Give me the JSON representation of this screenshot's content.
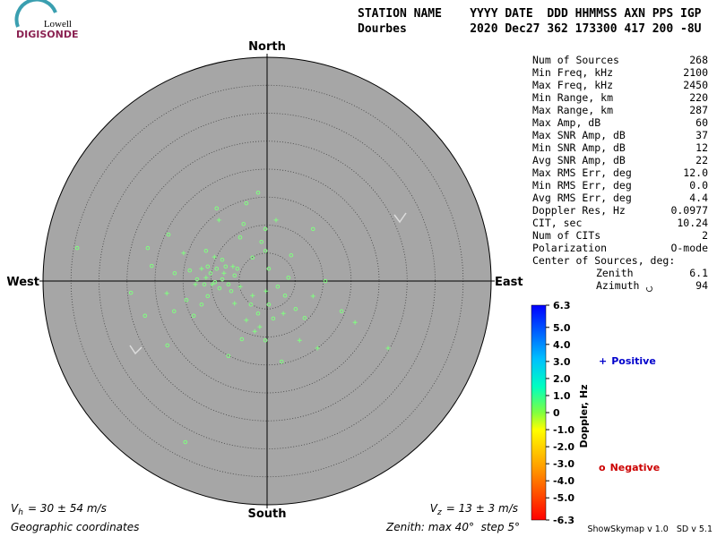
{
  "logo": {
    "top": "Lowell",
    "bottom": "DIGISONDE"
  },
  "header": {
    "line1": "STATION NAME    YYYY DATE  DDD HHMMSS AXN PPS IGP",
    "line2": "Dourbes         2020 Dec27 362 173300 417 200 -8U"
  },
  "stats": [
    [
      "Num of Sources",
      "268"
    ],
    [
      "Min Freq, kHz",
      "2100"
    ],
    [
      "Max Freq, kHz",
      "2450"
    ],
    [
      "Min Range, km",
      "220"
    ],
    [
      "Max Range, km",
      "287"
    ],
    [
      "Max Amp, dB",
      "60"
    ],
    [
      "Max SNR Amp, dB",
      "37"
    ],
    [
      "Min SNR Amp, dB",
      "12"
    ],
    [
      "Avg SNR Amp, dB",
      "22"
    ],
    [
      "Max RMS Err, deg",
      "12.0"
    ],
    [
      "Min RMS Err, deg",
      "0.0"
    ],
    [
      "Avg RMS Err, deg",
      "4.4"
    ],
    [
      "Doppler Res, Hz",
      "0.0977"
    ],
    [
      "CIT, sec",
      "10.24"
    ],
    [
      "Num of CITs",
      "2"
    ],
    [
      "Polarization",
      "O-mode"
    ]
  ],
  "center": {
    "title": "Center of Sources, deg:",
    "rows": [
      [
        "Zenith",
        "6.1"
      ],
      [
        "Azimuth",
        "94"
      ]
    ]
  },
  "colorbar": {
    "label": "Doppler, Hz",
    "clim": [
      -6.3,
      6.3
    ],
    "ticks": [
      6.3,
      {
        "value": 5,
        "label": "5.0"
      },
      {
        "value": 4,
        "label": "4.0"
      },
      {
        "value": 3,
        "label": "3.0"
      },
      {
        "value": 2,
        "label": "2.0"
      },
      {
        "value": 1,
        "label": "1.0"
      },
      0,
      {
        "value": -1,
        "label": "-1.0"
      },
      {
        "value": -2,
        "label": "-2.0"
      },
      {
        "value": -3,
        "label": "-3.0"
      },
      {
        "value": -4,
        "label": "-4.0"
      },
      {
        "value": -5,
        "label": "-5.0"
      },
      -6.3
    ]
  },
  "footer": {
    "vh": {
      "v": "V",
      "sub": "h",
      "text": "= 30 ± 54 m/s"
    },
    "vz": {
      "v": "V",
      "sub": "z",
      "text": "= 13 ± 3 m/s"
    },
    "coords": "Geographic coordinates",
    "zenith": "Zenith: max 40°  step 5°",
    "version": "ShowSkymap v 1.0   SD v 5.1"
  },
  "chart_data": {
    "type": "skymap",
    "directions": {
      "north": "North",
      "south": "South",
      "east": "East",
      "west": "West"
    },
    "rlim": [
      0,
      40
    ],
    "rticks": [
      5,
      10,
      15,
      20,
      25,
      30,
      35
    ],
    "point_color": "#80ff80",
    "series": [
      {
        "name": "Positive",
        "color": "#0000cc",
        "x": [
          21.6,
          1.6,
          -8.6,
          -17.9,
          -9.4,
          5.8,
          15.7,
          8.2,
          9.0,
          -0.2,
          -2.6,
          -5.8,
          -10.9,
          -11.7,
          -7.7,
          -6.1,
          -12.8,
          -3.7,
          -1.3,
          2.9,
          -4.8,
          -9.8,
          -14.9,
          -2.2
        ],
        "values": [
          -12.0,
          10.9,
          10.9,
          -2.2,
          4.3,
          -10.6,
          -7.4,
          -2.7,
          -12.0,
          -1.8,
          -2.6,
          -4.0,
          0.6,
          2.2,
          1.4,
          2.6,
          -0.6,
          -7.0,
          -8.2,
          -5.8,
          -1.0,
          -0.6,
          5.0,
          -9.0
        ]
      },
      {
        "name": "Negative",
        "color": "#cc0000",
        "x": [
          -33.9,
          -14.6,
          -1.6,
          -9.0,
          10.4,
          2.6,
          8.2,
          13.3,
          -24.3,
          -21.8,
          -17.8,
          -6.9,
          -4.5,
          -17.6,
          -21.3,
          -20.6,
          -16.6,
          -13.1,
          -10.6,
          -3.7,
          -4.2,
          -1.0,
          -0.3,
          -4.8,
          -10.9,
          -8.0,
          -13.8,
          -12.5,
          -11.2,
          -10.1,
          -9.0,
          -8.0,
          -6.9,
          -5.8,
          -8.5,
          -6.4,
          -5.3,
          -7.4,
          -9.3,
          -10.6,
          0.3,
          1.9,
          3.8,
          0.3,
          1.1,
          5.1,
          6.7,
          -1.6,
          -2.9,
          -0.3,
          3.2,
          -2.6,
          -14.4,
          -11.7,
          -16.5,
          -0.3,
          4.3
        ],
        "values": [
          5.9,
          -28.8,
          15.8,
          13.0,
          0,
          -14.4,
          9.3,
          -5.4,
          -2.1,
          -6.2,
          -11.5,
          -13.4,
          -10.4,
          8.3,
          5.9,
          2.7,
          -5.4,
          -6.2,
          -2.7,
          13.9,
          10.2,
          7.0,
          9.3,
          7.8,
          5.4,
          3.8,
          1.9,
          0.3,
          -0.6,
          1.4,
          2.2,
          0.3,
          -0.6,
          1.0,
          -1.3,
          -1.8,
          2.2,
          2.6,
          -0.2,
          2.6,
          2.2,
          -1.0,
          0.6,
          -4.2,
          -6.7,
          -5.0,
          -6.6,
          -5.8,
          -4.2,
          -10.6,
          -2.6,
          4.2,
          -3.4,
          -4.2,
          1.4,
          5.4,
          4.6
        ]
      }
    ]
  }
}
